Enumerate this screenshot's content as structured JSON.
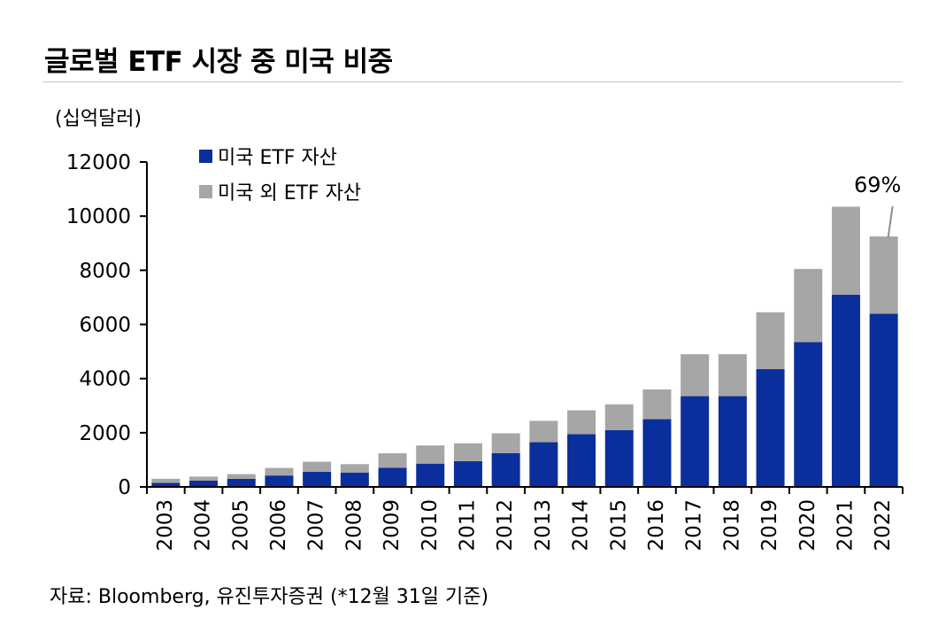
{
  "title": "글로벌 ETF 시장 중 미국 비중",
  "unit_label": "(십억달러)",
  "source": "자료: Bloomberg, 유진투자증권 (*12월 31일 기준)",
  "colors": {
    "us": "#0a2e9c",
    "non_us": "#a6a6a6",
    "axis": "#000000"
  },
  "chart_data": {
    "type": "bar",
    "stacked": true,
    "categories": [
      "2003",
      "2004",
      "2005",
      "2006",
      "2007",
      "2008",
      "2009",
      "2010",
      "2011",
      "2012",
      "2013",
      "2014",
      "2015",
      "2016",
      "2017",
      "2018",
      "2019",
      "2020",
      "2021",
      "2022"
    ],
    "series": [
      {
        "name": "미국 ETF 자산",
        "values": [
          150,
          230,
          300,
          420,
          560,
          530,
          710,
          860,
          950,
          1250,
          1650,
          1950,
          2100,
          2500,
          3350,
          3350,
          4350,
          5350,
          7100,
          6400
        ]
      },
      {
        "name": "미국 외 ETF 자산",
        "values": [
          150,
          150,
          170,
          280,
          370,
          310,
          530,
          670,
          660,
          730,
          790,
          880,
          950,
          1100,
          1550,
          1550,
          2100,
          2700,
          3250,
          2850
        ]
      }
    ],
    "ylim": [
      0,
      12000
    ],
    "yticks": [
      "0",
      "2000",
      "4000",
      "6000",
      "8000",
      "10000",
      "12000"
    ],
    "legend_position": "top-left",
    "annotation": {
      "text": "69%",
      "category": "2022"
    }
  }
}
